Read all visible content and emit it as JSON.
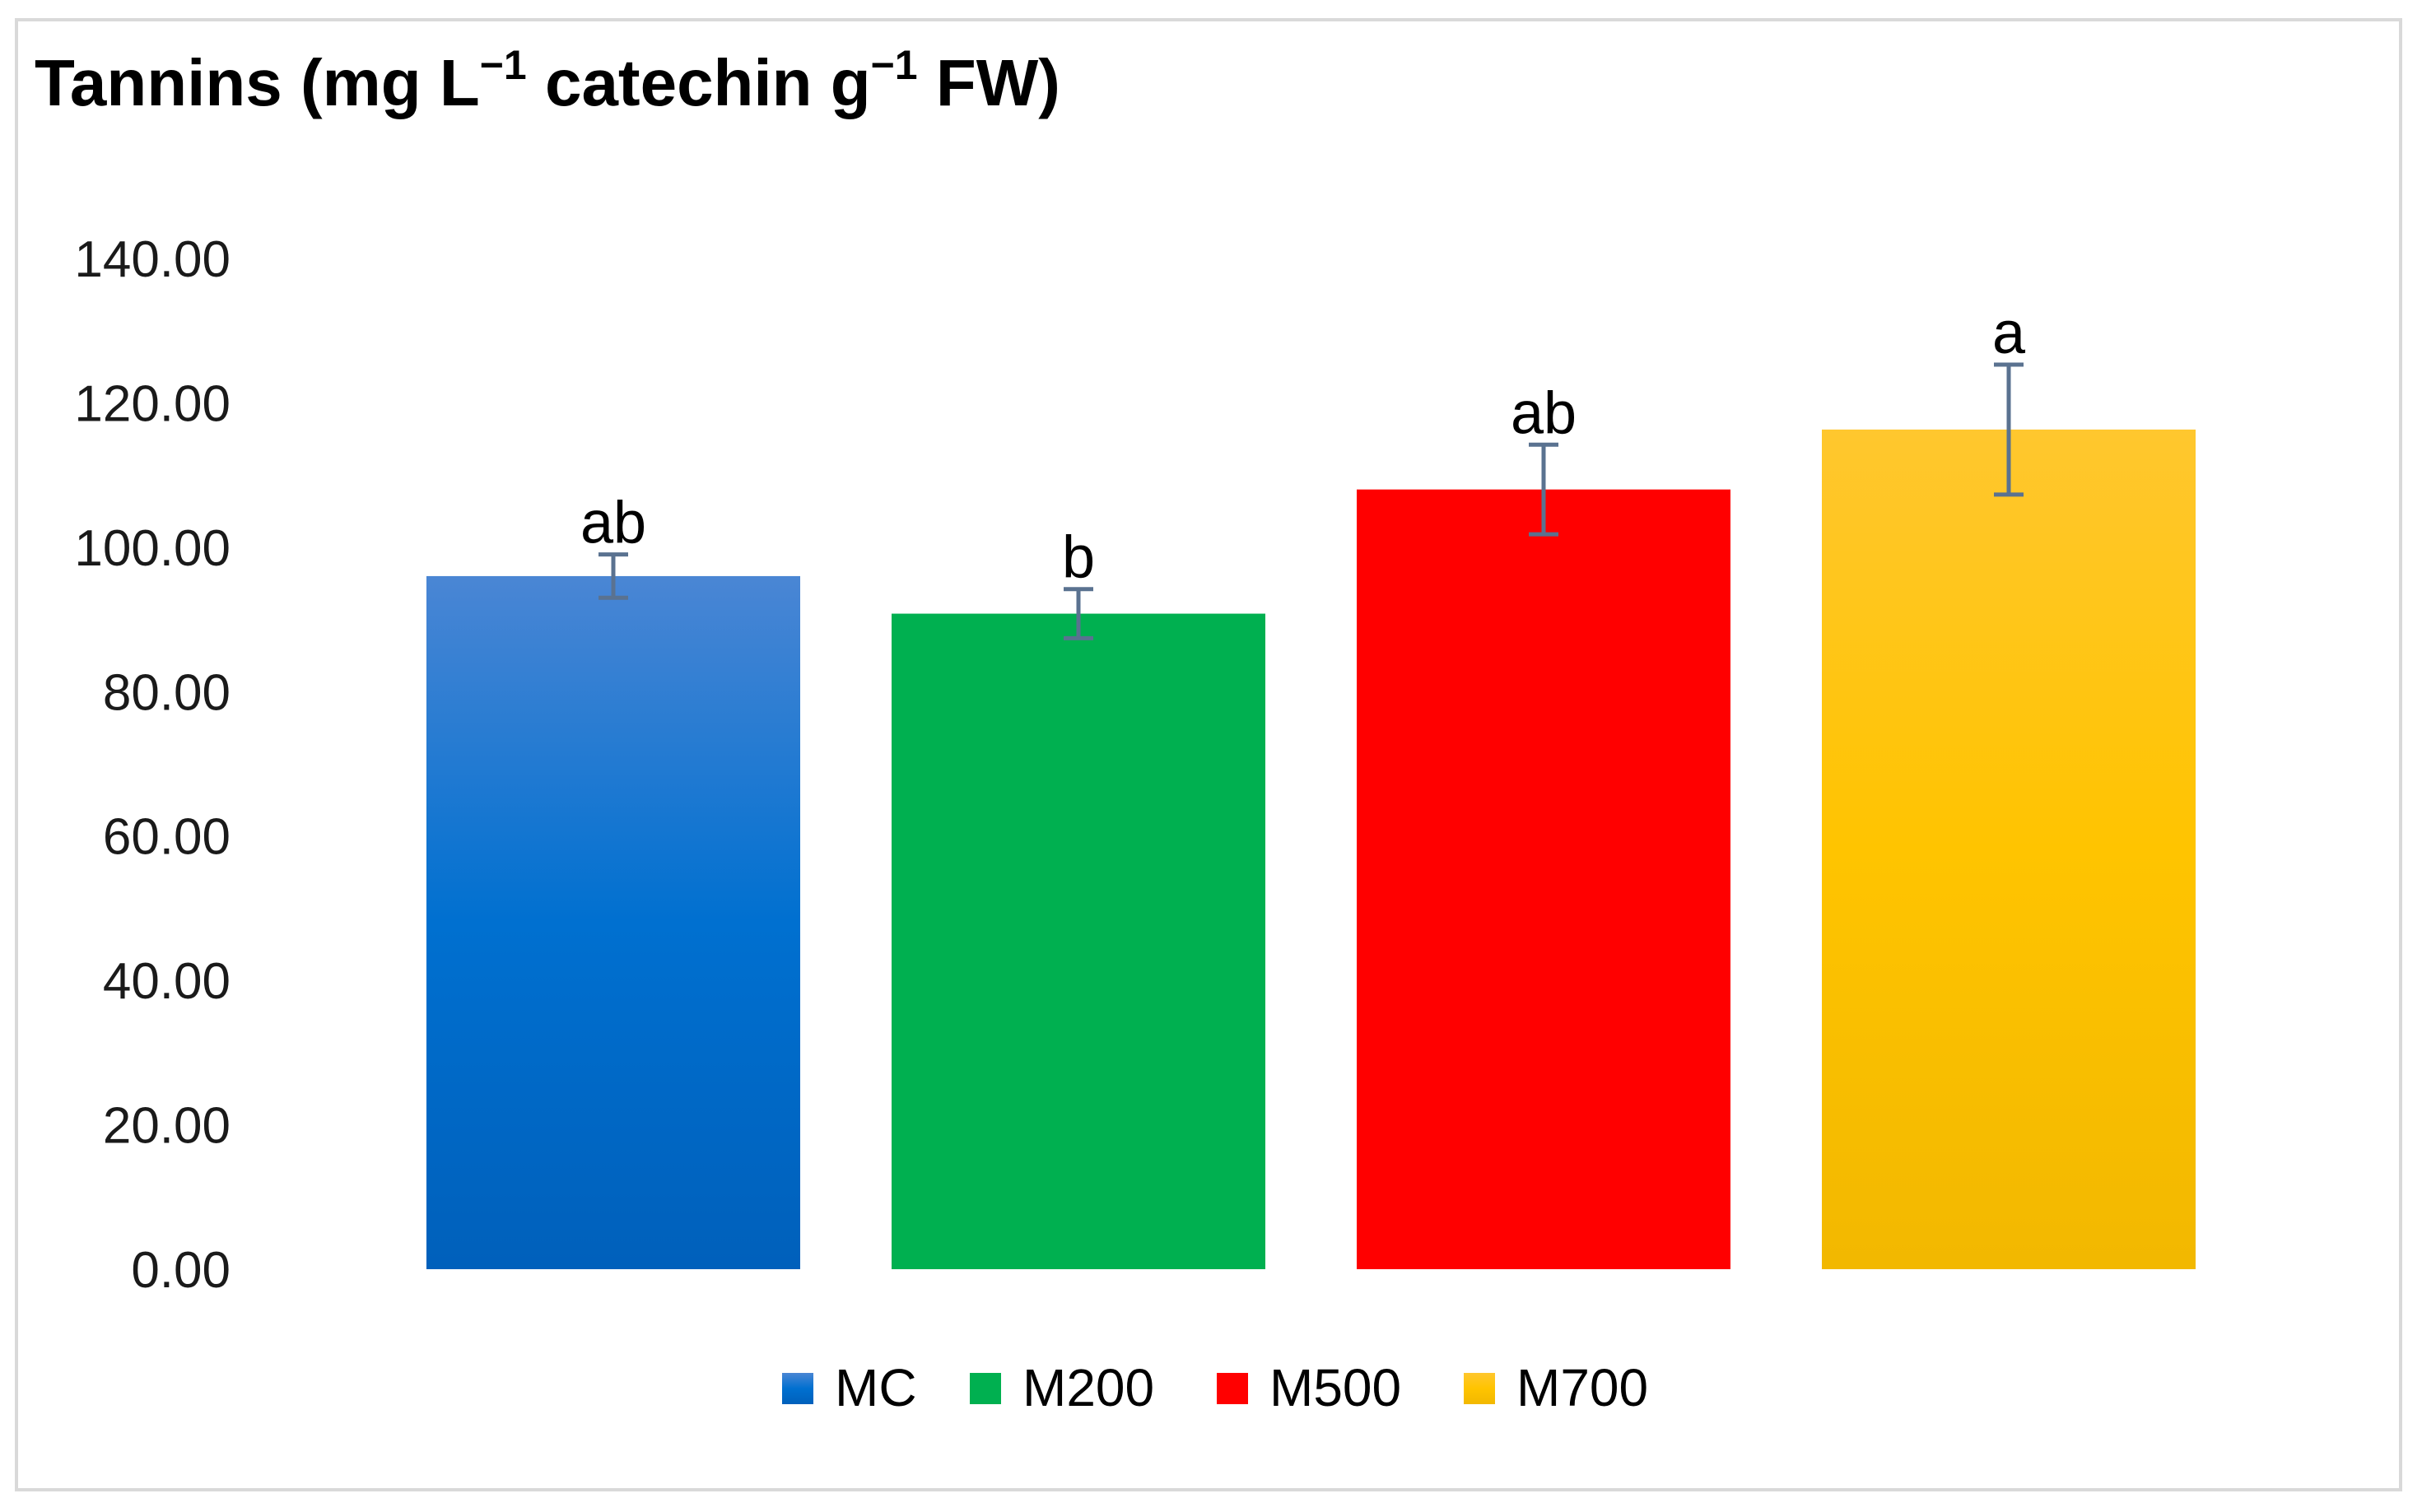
{
  "chart_data": {
    "type": "bar",
    "title": {
      "part1": "Tannins (mg L",
      "sup1": "−1",
      "part2": " catechin g",
      "sup2": "−1",
      "part3": " FW)"
    },
    "xlabel": "",
    "ylabel": "",
    "ylim": [
      0,
      140
    ],
    "yticks": [
      "0.00",
      "20.00",
      "40.00",
      "60.00",
      "80.00",
      "100.00",
      "120.00",
      "140.00"
    ],
    "grid": false,
    "legend_position": "bottom",
    "series": [
      {
        "name": "MC",
        "value": 96.0,
        "error": 3.0,
        "significance": "ab",
        "color_top": "#4a86d4",
        "color_mid": "#0070d0",
        "color_bottom": "#0060bb"
      },
      {
        "name": "M200",
        "value": 90.8,
        "error": 3.4,
        "significance": "b",
        "color_top": "#00b050",
        "color_mid": "#00b050",
        "color_bottom": "#00b050"
      },
      {
        "name": "M500",
        "value": 108.0,
        "error": 6.2,
        "significance": "ab",
        "color_top": "#ff0000",
        "color_mid": "#ff0000",
        "color_bottom": "#ff0000"
      },
      {
        "name": "M700",
        "value": 116.3,
        "error": 9.0,
        "significance": "a",
        "color_top": "#ffc72e",
        "color_mid": "#ffc400",
        "color_bottom": "#f2b800"
      }
    ],
    "error_bar_color": "#5a7290"
  }
}
